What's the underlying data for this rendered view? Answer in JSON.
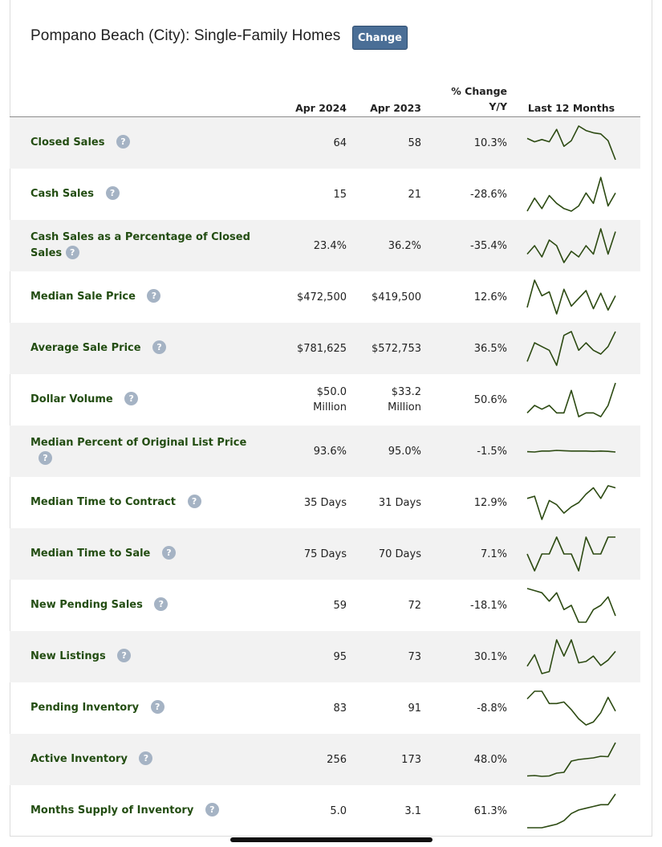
{
  "header": {
    "title": "Pompano Beach (City): Single-Family Homes",
    "change_label": "Change"
  },
  "columns": {
    "current": "Apr 2024",
    "previous": "Apr 2023",
    "change_line1": "% Change",
    "change_line2": "Y/Y",
    "trend": "Last 12 Months"
  },
  "help_glyph": "?",
  "colors": {
    "label_green": "#234d12",
    "sparkline": "#2c4a12",
    "button": "#4a6e96",
    "row_alt": "#f2f2f2"
  },
  "rows": [
    {
      "label": "Closed Sales",
      "current": "64",
      "previous": "58",
      "change": "10.3%",
      "trend": [
        45,
        42,
        44,
        42,
        53,
        38,
        43,
        56,
        52,
        50,
        49,
        43,
        26
      ]
    },
    {
      "label": "Cash Sales",
      "current": "15",
      "previous": "21",
      "change": "-28.6%",
      "trend": [
        20,
        30,
        22,
        32,
        26,
        22,
        20,
        24,
        34,
        26,
        46,
        24,
        34
      ]
    },
    {
      "label": "Cash Sales as a Percentage of Closed Sales",
      "current": "23.4%",
      "previous": "36.2%",
      "change": "-35.4%",
      "trend": [
        36,
        42,
        34,
        46,
        42,
        30,
        38,
        34,
        42,
        36,
        54,
        36,
        52
      ]
    },
    {
      "label": "Median Sale Price",
      "current": "$472,500",
      "previous": "$419,500",
      "change": "12.6%",
      "trend": [
        42,
        84,
        60,
        66,
        32,
        70,
        44,
        56,
        68,
        40,
        64,
        38,
        60
      ]
    },
    {
      "label": "Average Sale Price",
      "current": "$781,625",
      "previous": "$572,753",
      "change": "36.5%",
      "trend": [
        40,
        50,
        48,
        46,
        38,
        54,
        56,
        46,
        50,
        46,
        44,
        48,
        56
      ]
    },
    {
      "label": "Dollar Volume",
      "current": "$50.0\nMillion",
      "previous": "$33.2\nMillion",
      "change": "50.6%",
      "trend": [
        40,
        42,
        41,
        42,
        40,
        40,
        46,
        39,
        40,
        40,
        39,
        42,
        48
      ]
    },
    {
      "label": "Median Percent of Original List Price",
      "current": "93.6%",
      "previous": "95.0%",
      "change": "-1.5%",
      "trend": [
        94.6,
        94.5,
        94.8,
        94.8,
        95.0,
        94.9,
        94.8,
        94.8,
        94.8,
        94.7,
        94.8,
        94.7,
        94.5
      ]
    },
    {
      "label": "Median Time to Contract",
      "current": "35 Days",
      "previous": "31 Days",
      "change": "12.9%",
      "trend": [
        32,
        34,
        12,
        30,
        26,
        18,
        24,
        28,
        36,
        42,
        32,
        44,
        42
      ]
    },
    {
      "label": "Median Time to Sale",
      "current": "75 Days",
      "previous": "70 Days",
      "change": "7.1%",
      "trend": [
        70,
        69,
        70,
        70,
        71,
        70,
        70,
        69,
        71,
        70,
        70,
        71,
        71
      ]
    },
    {
      "label": "New Pending Sales",
      "current": "59",
      "previous": "72",
      "change": "-18.1%",
      "trend": [
        72,
        71,
        70,
        66,
        70,
        62,
        64,
        56,
        56,
        62,
        64,
        68,
        59
      ]
    },
    {
      "label": "New Listings",
      "current": "95",
      "previous": "73",
      "change": "30.1%",
      "trend": [
        73,
        90,
        62,
        65,
        112,
        88,
        112,
        78,
        80,
        88,
        74,
        82,
        95
      ]
    },
    {
      "label": "Pending Inventory",
      "current": "83",
      "previous": "91",
      "change": "-8.8%",
      "trend": [
        91,
        96,
        96,
        88,
        88,
        89,
        84,
        78,
        74,
        76,
        82,
        92,
        83
      ]
    },
    {
      "label": "Active Inventory",
      "current": "256",
      "previous": "173",
      "change": "48.0%",
      "trend": [
        173,
        174,
        172,
        173,
        180,
        182,
        210,
        214,
        216,
        218,
        222,
        221,
        256
      ]
    },
    {
      "label": "Months Supply of Inventory",
      "current": "5.0",
      "previous": "3.1",
      "change": "61.3%",
      "trend": [
        3.1,
        3.1,
        3.1,
        3.2,
        3.3,
        3.5,
        3.9,
        4.1,
        4.2,
        4.3,
        4.4,
        4.4,
        5.0
      ]
    }
  ]
}
